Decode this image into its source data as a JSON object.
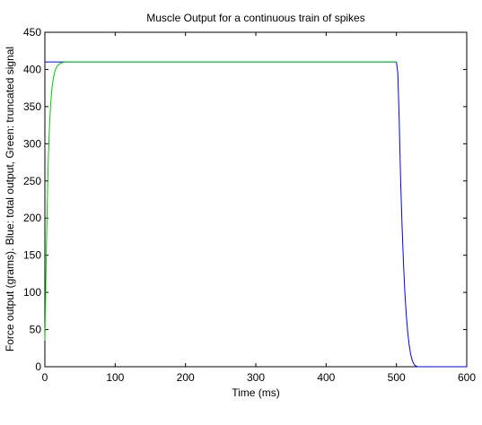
{
  "chart_data": {
    "type": "line",
    "title": "Muscle Output for a continuous train of spikes",
    "xlabel": "Time (ms)",
    "ylabel": "Force output (grams). Blue: total output, Green: truncated signal",
    "xlim": [
      0,
      600
    ],
    "ylim": [
      0,
      450
    ],
    "xticks": [
      0,
      100,
      200,
      300,
      400,
      500,
      600
    ],
    "yticks": [
      0,
      50,
      100,
      150,
      200,
      250,
      300,
      350,
      400,
      450
    ],
    "grid": false,
    "series": [
      {
        "color": "#0000ff",
        "x": [
          0,
          500,
          502,
          504,
          506,
          508,
          510,
          512,
          514,
          516,
          518,
          520,
          522,
          524,
          526,
          528,
          530,
          535,
          600
        ],
        "y": [
          410,
          410,
          395,
          330,
          250,
          190,
          140,
          100,
          70,
          47,
          30,
          18,
          10,
          5,
          2,
          1,
          0,
          0,
          0
        ]
      },
      {
        "color": "#00cc00",
        "x": [
          0,
          1,
          2,
          3,
          4,
          5,
          6,
          7,
          8,
          10,
          12,
          14,
          16,
          18,
          20,
          24,
          28,
          35,
          40,
          500
        ],
        "y": [
          35,
          90,
          150,
          200,
          245,
          282,
          310,
          332,
          350,
          374,
          388,
          397,
          402,
          405,
          407,
          409,
          410,
          410,
          410,
          410
        ]
      }
    ]
  }
}
